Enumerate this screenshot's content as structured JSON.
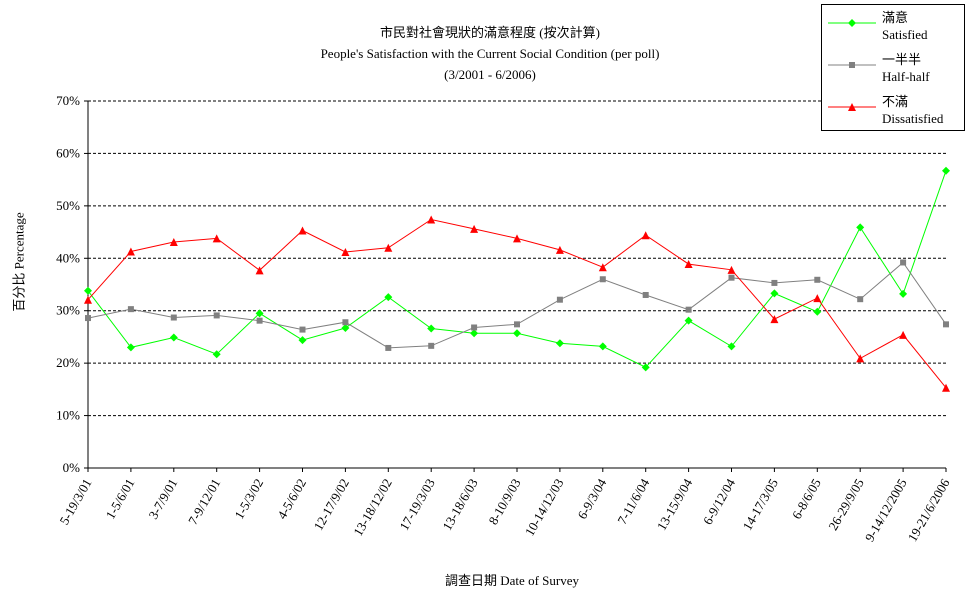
{
  "chart_data": {
    "type": "line",
    "title": "市民對社會現狀的滿意程度 (按次計算)",
    "subtitle": "People's Satisfaction with the Current Social Condition (per poll)",
    "period": "(3/2001 - 6/2006)",
    "ylabel": "百分比 Percentage",
    "xlabel": "調查日期 Date of Survey",
    "ylim": [
      0,
      70
    ],
    "yticks": [
      "0%",
      "10%",
      "20%",
      "30%",
      "40%",
      "50%",
      "60%",
      "70%"
    ],
    "grid": true,
    "legend_position": "top-right",
    "categories": [
      "5-19/3/01",
      "1-5/6/01",
      "3-7/9/01",
      "7-9/12/01",
      "1-5/3/02",
      "4-5/6/02",
      "12-17/9/02",
      "13-18/12/02",
      "17-19/3/03",
      "13-18/6/03",
      "8-10/9/03",
      "10-14/12/03",
      "6-9/3/04",
      "7-11/6/04",
      "13-15/9/04",
      "6-9/12/04",
      "14-17/3/05",
      "6-8/6/05",
      "26-29/9/05",
      "9-14/12/2005",
      "19-21/6/2006"
    ],
    "series": [
      {
        "name": "滿意",
        "name_en": "Satisfied",
        "color": "#00ff00",
        "marker": "diamond",
        "values": [
          33.8,
          23.0,
          24.9,
          21.7,
          29.5,
          24.4,
          26.7,
          32.6,
          26.6,
          25.7,
          25.7,
          23.8,
          23.2,
          19.2,
          28.1,
          23.2,
          33.3,
          29.8,
          45.9,
          33.2,
          56.7
        ]
      },
      {
        "name": "一半半",
        "name_en": "Half-half",
        "color": "#808080",
        "marker": "square",
        "values": [
          28.6,
          30.3,
          28.7,
          29.1,
          28.1,
          26.4,
          27.8,
          22.9,
          23.3,
          26.8,
          27.4,
          32.1,
          36.0,
          33.0,
          30.2,
          36.3,
          35.3,
          35.9,
          32.2,
          39.2,
          27.4
        ]
      },
      {
        "name": "不滿",
        "name_en": "Dissatisfied",
        "color": "#ff0000",
        "marker": "triangle",
        "values": [
          32.1,
          41.3,
          43.1,
          43.8,
          37.7,
          45.3,
          41.2,
          42.0,
          47.4,
          45.6,
          43.8,
          41.6,
          38.3,
          44.4,
          38.9,
          37.8,
          28.4,
          32.4,
          20.9,
          25.4,
          15.3
        ]
      }
    ]
  }
}
